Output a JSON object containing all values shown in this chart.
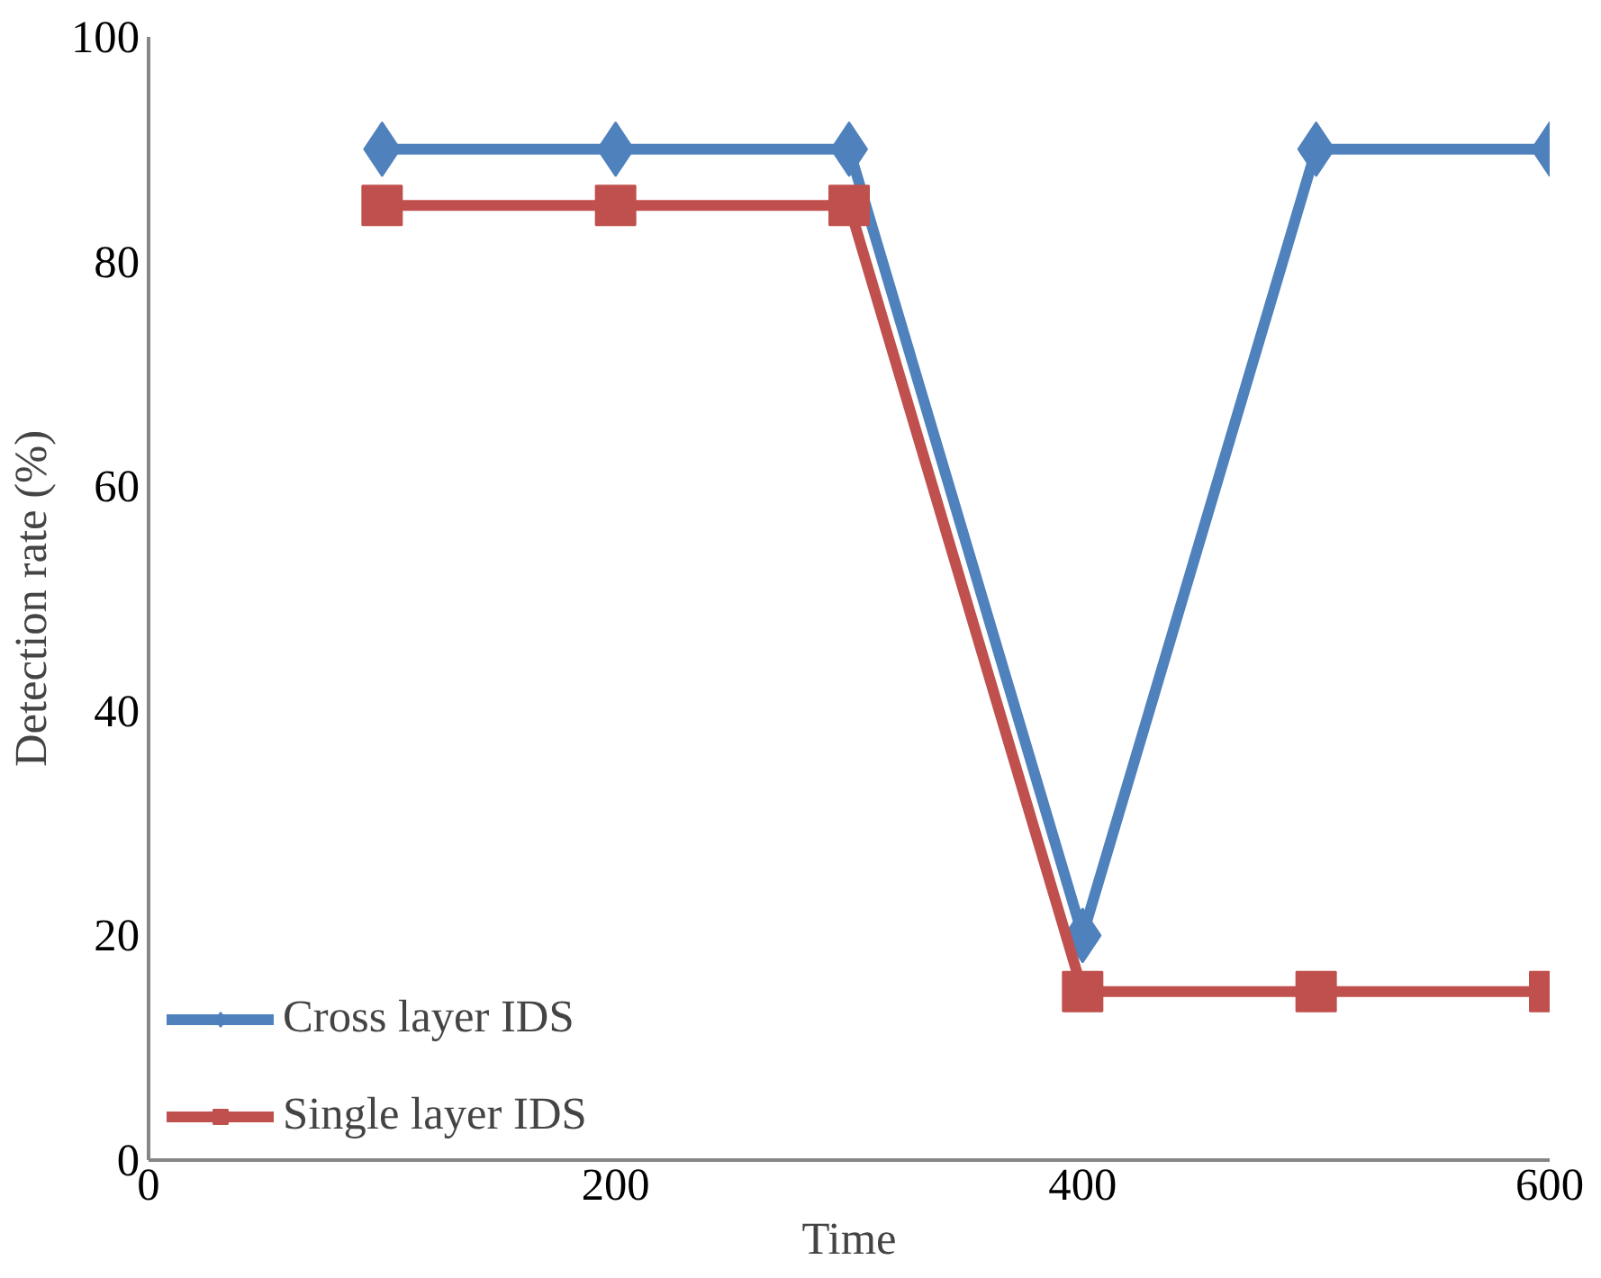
{
  "chart_data": {
    "type": "line",
    "xlabel": "Time",
    "ylabel": "Detection rate (%)",
    "x": [
      100,
      200,
      300,
      400,
      500,
      600
    ],
    "series": [
      {
        "name": "Cross layer IDS",
        "color": "#4f81bd",
        "marker": "diamond",
        "values": [
          90,
          90,
          90,
          20,
          90,
          90
        ]
      },
      {
        "name": "Single layer IDS",
        "color": "#c0504d",
        "marker": "square",
        "values": [
          85,
          85,
          85,
          15,
          15,
          15
        ]
      }
    ],
    "xlim": [
      0,
      600
    ],
    "xticks": [
      0,
      200,
      400,
      600
    ],
    "ylim": [
      0,
      100
    ],
    "yticks": [
      0,
      20,
      40,
      60,
      80,
      100
    ],
    "grid": false,
    "legend": "bottom left",
    "line_style": "solid"
  }
}
